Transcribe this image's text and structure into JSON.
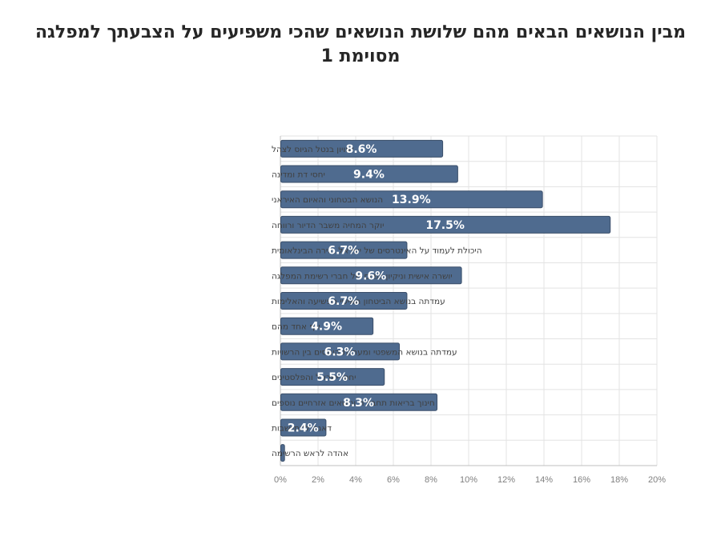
{
  "chart_data": {
    "type": "bar",
    "orientation": "horizontal",
    "title_line1": "מבין הנושאים הבאים מהם שלושת הנושאים שהכי משפיעים על הצבעתך למפלגה",
    "title_line2": "מסוימת 1",
    "categories": [
      "שוויון בנטל הגיוס לצהל",
      "יחסי דת ומדינה",
      "הנושא הבטחוני והאיום האיראני",
      "יוקר המחיה משבר הדיור ורווחה",
      "היכולת לעמוד על האינטרסים של ישראל בזירה הבינלאומית",
      "יושרה אישית וניקיון כפיים של חברי רשימת המפלגה",
      "עמדתה בנושא הביטחון האישי הפשיעה והאלימות",
      "אף אחד מהם",
      "עמדתה בנושא המשפטי ומערכת היחסים בין הרשויות",
      "יחסי ישראל והפלסטינים",
      "חינוך בריאות תחבורה ונושאים אזרחיים נוספים",
      "דאגה להתיישבות",
      "אהדה לראש הרשימה"
    ],
    "values": [
      8.6,
      9.4,
      13.9,
      17.5,
      6.7,
      9.6,
      6.7,
      4.9,
      6.3,
      5.5,
      8.3,
      2.4,
      0.2
    ],
    "data_labels": [
      "8.6%",
      "9.4%",
      "13.9%",
      "17.5%",
      "6.7%",
      "9.6%",
      "6.7%",
      "4.9%",
      "6.3%",
      "5.5%",
      "8.3%",
      "2.4%",
      ""
    ],
    "xlim": [
      0,
      20
    ],
    "x_ticks": [
      0,
      2,
      4,
      6,
      8,
      10,
      12,
      14,
      16,
      18,
      20
    ],
    "x_tick_labels": [
      "0%",
      "2%",
      "4%",
      "6%",
      "8%",
      "10%",
      "12%",
      "14%",
      "16%",
      "18%",
      "20%"
    ],
    "xlabel": "",
    "ylabel": "",
    "grid": true,
    "legend": "none",
    "bar_color": "#4f6b8f",
    "bar_edge_color": "#3b4f6a",
    "grid_color": "#e3e3e3",
    "axis_color": "#bfbfbf"
  }
}
